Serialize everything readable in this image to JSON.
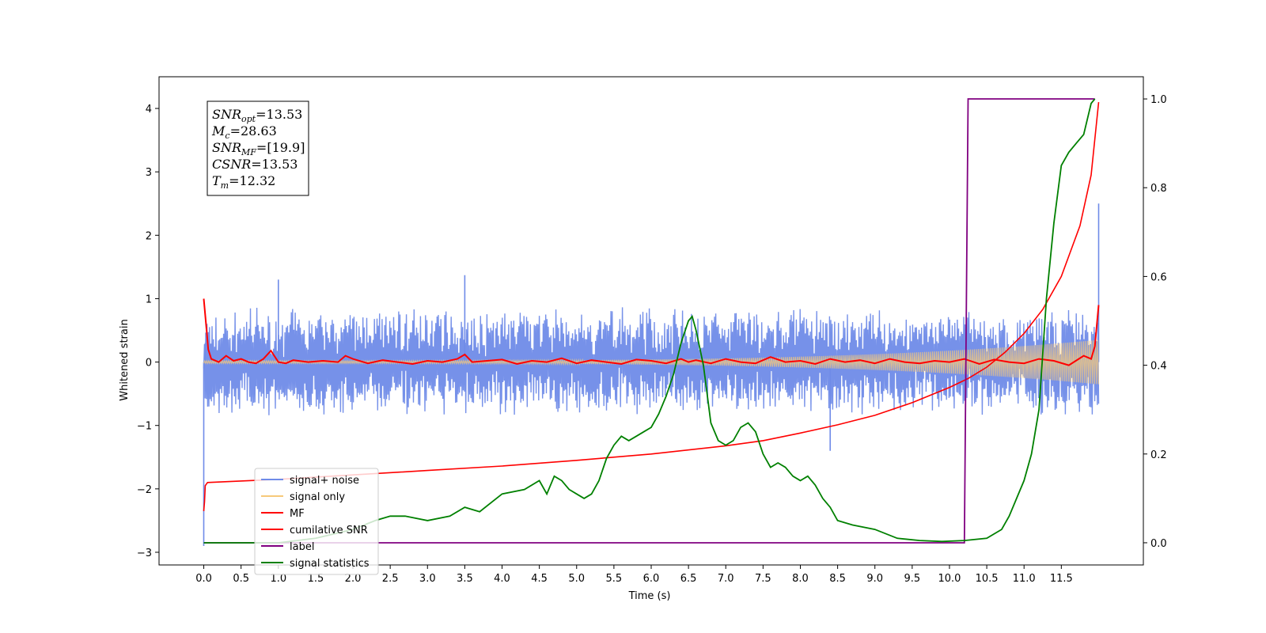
{
  "chart_data": {
    "type": "line",
    "title": "",
    "xlabel": "Time (s)",
    "ylabel": "Whitened strain",
    "xlim": [
      -0.6,
      12.6
    ],
    "ylim": [
      -3.2,
      4.5
    ],
    "y2lim": [
      -0.05,
      1.05
    ],
    "x_ticks": [
      "0.0",
      "0.5",
      "1.0",
      "1.5",
      "2.0",
      "2.5",
      "3.0",
      "3.5",
      "4.0",
      "4.5",
      "5.0",
      "5.5",
      "6.0",
      "6.5",
      "7.0",
      "7.5",
      "8.0",
      "8.5",
      "9.0",
      "9.5",
      "10.0",
      "10.5",
      "11.0",
      "11.5"
    ],
    "y_ticks": [
      "4",
      "3",
      "2",
      "1",
      "0",
      "−1",
      "−2",
      "−3"
    ],
    "y2_ticks": [
      "1.0",
      "0.8",
      "0.6",
      "0.4",
      "0.2",
      "0.0"
    ],
    "grid": false,
    "legend_position": "lower-left",
    "legend": [
      {
        "label": "signal+ noise",
        "color": "#6f8be8"
      },
      {
        "label": "signal only",
        "color": "#f7c97a"
      },
      {
        "label": "MF",
        "color": "#ff0000"
      },
      {
        "label": "cumilative SNR",
        "color": "#ff0000"
      },
      {
        "label": "label",
        "color": "#800080"
      },
      {
        "label": "signal statistics",
        "color": "#008000"
      }
    ],
    "annotation": {
      "lines": [
        {
          "base": "SNR",
          "sub": "opt",
          "value": "=13.53"
        },
        {
          "base": "M",
          "sub": "c",
          "value": "=28.63"
        },
        {
          "base": "SNR",
          "sub": "MF",
          "value": "=[19.9]"
        },
        {
          "base": "CSNR",
          "sub": "",
          "value": "=13.53"
        },
        {
          "base": "T",
          "sub": "m",
          "value": "=12.32"
        }
      ]
    },
    "series": [
      {
        "name": "signal+ noise",
        "axis": "left",
        "color": "#6f8be8",
        "x_range": [
          0.0,
          12.0
        ],
        "envelope_approx": 0.65,
        "spikes": [
          [
            0.0,
            -2.9
          ],
          [
            0.02,
            0.3
          ],
          [
            12.0,
            2.5
          ],
          [
            3.5,
            1.37
          ],
          [
            1.0,
            1.3
          ],
          [
            8.4,
            -1.4
          ]
        ]
      },
      {
        "name": "signal only",
        "axis": "left",
        "color": "#f7c97a",
        "x_range": [
          0.0,
          12.0
        ],
        "amplitude_start": 0.02,
        "amplitude_end": 0.35
      },
      {
        "name": "MF",
        "axis": "left",
        "color": "#ff0000",
        "x": [
          0.0,
          0.03,
          0.06,
          0.1,
          0.2,
          0.3,
          0.4,
          0.5,
          0.6,
          0.7,
          0.8,
          0.9,
          1.0,
          1.1,
          1.2,
          1.4,
          1.6,
          1.8,
          1.9,
          2.0,
          2.2,
          2.4,
          2.6,
          2.8,
          3.0,
          3.2,
          3.4,
          3.5,
          3.6,
          3.8,
          4.0,
          4.2,
          4.4,
          4.6,
          4.8,
          5.0,
          5.2,
          5.4,
          5.6,
          5.8,
          6.0,
          6.2,
          6.4,
          6.5,
          6.6,
          6.8,
          7.0,
          7.2,
          7.4,
          7.6,
          7.8,
          8.0,
          8.2,
          8.4,
          8.6,
          8.8,
          9.0,
          9.2,
          9.4,
          9.6,
          9.8,
          10.0,
          10.2,
          10.4,
          10.6,
          10.8,
          11.0,
          11.2,
          11.4,
          11.6,
          11.8,
          11.9,
          11.95,
          12.0
        ],
        "y": [
          1.0,
          0.6,
          0.2,
          0.05,
          0.0,
          0.1,
          0.02,
          0.05,
          0.0,
          -0.02,
          0.05,
          0.18,
          0.0,
          -0.02,
          0.03,
          0.0,
          0.02,
          0.0,
          0.1,
          0.05,
          -0.02,
          0.03,
          0.0,
          -0.03,
          0.02,
          0.0,
          0.05,
          0.12,
          0.0,
          0.02,
          0.04,
          -0.03,
          0.02,
          0.0,
          0.06,
          -0.02,
          0.03,
          0.0,
          -0.03,
          0.04,
          0.02,
          -0.02,
          0.05,
          0.0,
          0.03,
          -0.02,
          0.05,
          0.0,
          -0.02,
          0.08,
          0.0,
          0.02,
          -0.03,
          0.05,
          0.0,
          0.03,
          -0.02,
          0.05,
          0.0,
          -0.02,
          0.02,
          0.0,
          0.05,
          -0.03,
          0.04,
          0.0,
          -0.02,
          0.05,
          0.02,
          -0.05,
          0.1,
          0.05,
          0.25,
          0.9
        ]
      },
      {
        "name": "cumilative SNR",
        "axis": "left",
        "color": "#ff0000",
        "x": [
          0.0,
          0.01,
          0.02,
          0.05,
          1.0,
          2.0,
          3.0,
          4.0,
          5.0,
          6.0,
          7.0,
          7.5,
          8.0,
          8.5,
          9.0,
          9.5,
          10.0,
          10.25,
          10.5,
          10.75,
          11.0,
          11.25,
          11.5,
          11.75,
          11.9,
          12.0
        ],
        "y": [
          -2.35,
          -2.2,
          -1.95,
          -1.9,
          -1.85,
          -1.78,
          -1.71,
          -1.64,
          -1.55,
          -1.45,
          -1.32,
          -1.24,
          -1.12,
          -0.99,
          -0.84,
          -0.64,
          -0.4,
          -0.26,
          -0.08,
          0.16,
          0.45,
          0.83,
          1.35,
          2.15,
          2.95,
          4.1
        ]
      },
      {
        "name": "label",
        "axis": "right",
        "color": "#800080",
        "x": [
          0.0,
          10.2,
          10.25,
          11.95
        ],
        "y": [
          0.0,
          0.0,
          1.0,
          1.0
        ]
      },
      {
        "name": "signal statistics",
        "axis": "right",
        "color": "#008000",
        "x": [
          0.0,
          0.5,
          1.0,
          1.5,
          2.0,
          2.3,
          2.5,
          2.7,
          3.0,
          3.3,
          3.5,
          3.7,
          4.0,
          4.3,
          4.5,
          4.6,
          4.7,
          4.8,
          4.9,
          5.0,
          5.1,
          5.2,
          5.3,
          5.4,
          5.5,
          5.6,
          5.7,
          5.8,
          5.9,
          6.0,
          6.1,
          6.2,
          6.3,
          6.4,
          6.5,
          6.55,
          6.6,
          6.7,
          6.8,
          6.9,
          7.0,
          7.1,
          7.2,
          7.3,
          7.4,
          7.5,
          7.6,
          7.7,
          7.8,
          7.9,
          8.0,
          8.1,
          8.2,
          8.3,
          8.4,
          8.5,
          8.7,
          9.0,
          9.3,
          9.6,
          9.9,
          10.2,
          10.5,
          10.7,
          10.8,
          10.9,
          11.0,
          11.1,
          11.2,
          11.3,
          11.4,
          11.5,
          11.6,
          11.7,
          11.8,
          11.9,
          11.95
        ],
        "y": [
          0.0,
          0.0,
          0.0,
          0.01,
          0.03,
          0.05,
          0.06,
          0.06,
          0.05,
          0.06,
          0.08,
          0.07,
          0.11,
          0.12,
          0.14,
          0.11,
          0.15,
          0.14,
          0.12,
          0.11,
          0.1,
          0.11,
          0.14,
          0.19,
          0.22,
          0.24,
          0.23,
          0.24,
          0.25,
          0.26,
          0.29,
          0.33,
          0.38,
          0.45,
          0.5,
          0.51,
          0.48,
          0.4,
          0.27,
          0.23,
          0.22,
          0.23,
          0.26,
          0.27,
          0.25,
          0.2,
          0.17,
          0.18,
          0.17,
          0.15,
          0.14,
          0.15,
          0.13,
          0.1,
          0.08,
          0.05,
          0.04,
          0.03,
          0.01,
          0.005,
          0.003,
          0.005,
          0.01,
          0.03,
          0.06,
          0.1,
          0.14,
          0.2,
          0.3,
          0.55,
          0.72,
          0.85,
          0.88,
          0.9,
          0.92,
          0.99,
          1.0
        ]
      }
    ]
  }
}
